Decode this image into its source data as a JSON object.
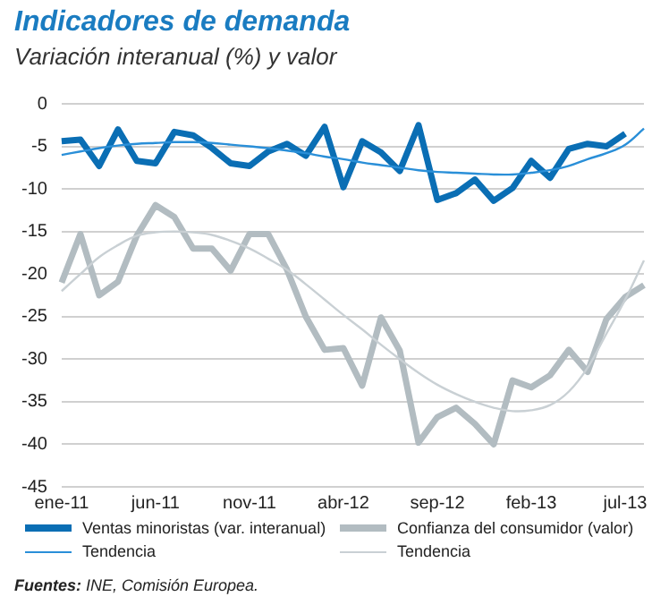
{
  "chart_data": {
    "type": "line",
    "title": "Indicadores de demanda",
    "subtitle": "Variación interanual (%) y valor",
    "categories": [
      "ene-11",
      null,
      null,
      null,
      null,
      "jun-11",
      null,
      null,
      null,
      null,
      "nov-11",
      null,
      null,
      null,
      null,
      "abr-12",
      null,
      null,
      null,
      null,
      "sep-12",
      null,
      null,
      null,
      null,
      "feb-13",
      null,
      null,
      null,
      null,
      "jul-13",
      null
    ],
    "series": [
      {
        "name": "Ventas minoristas (var. interanual)",
        "color": "#0a6eb4",
        "values": [
          -4.4,
          -4.2,
          -7.3,
          -3.0,
          -6.7,
          -7.0,
          -3.3,
          -3.7,
          -5.2,
          -7.0,
          -7.3,
          -5.6,
          -4.7,
          -6.1,
          -2.7,
          -9.8,
          -4.4,
          -5.7,
          -7.9,
          -2.5,
          -11.3,
          -10.5,
          -8.9,
          -11.4,
          -9.9,
          -6.7,
          -8.7,
          -5.3,
          -4.7,
          -5.0,
          -3.5,
          null
        ]
      },
      {
        "name": "Tendencia",
        "color": "#2a8fd8",
        "values": [
          -6.0,
          -5.6,
          -5.2,
          -4.9,
          -4.7,
          -4.6,
          -4.5,
          -4.5,
          -4.6,
          -4.8,
          -5.0,
          -5.2,
          -5.5,
          -5.8,
          -6.2,
          -6.5,
          -6.9,
          -7.2,
          -7.5,
          -7.8,
          -8.0,
          -8.1,
          -8.2,
          -8.3,
          -8.3,
          -8.1,
          -7.8,
          -7.3,
          -6.5,
          -5.8,
          -4.8,
          -2.9
        ]
      },
      {
        "name": "Confianza del consumidor (valor)",
        "color": "#b2bcc1",
        "values": [
          -21.0,
          -15.3,
          -22.5,
          -20.9,
          -15.5,
          -11.9,
          -13.3,
          -17.0,
          -17.0,
          -19.6,
          -15.3,
          -15.3,
          -19.5,
          -25.0,
          -28.9,
          -28.7,
          -33.1,
          -25.1,
          -29.0,
          -39.8,
          -36.8,
          -35.7,
          -37.6,
          -40.0,
          -32.5,
          -33.3,
          -31.9,
          -28.9,
          -31.5,
          -25.3,
          -22.7,
          -21.3
        ]
      },
      {
        "name": "Tendencia",
        "color": "#c9d0d4",
        "values": [
          -22.0,
          -20.0,
          -18.0,
          -16.6,
          -15.5,
          -15.1,
          -15.0,
          -15.1,
          -15.4,
          -16.1,
          -17.0,
          -18.2,
          -19.5,
          -21.2,
          -23.0,
          -24.8,
          -26.5,
          -28.3,
          -30.0,
          -31.6,
          -33.0,
          -34.1,
          -35.0,
          -35.7,
          -36.1,
          -36.0,
          -35.4,
          -33.8,
          -31.0,
          -27.0,
          -23.0,
          -18.4
        ]
      }
    ],
    "ylim": [
      -45,
      0
    ],
    "yticks": [
      -45,
      -40,
      -35,
      -30,
      -25,
      -20,
      -15,
      -10,
      -5,
      0
    ],
    "grid": "y",
    "legend": "bottom",
    "marker": "none",
    "line_style": "solid",
    "annotations": [
      "Fuentes: INE, Comisión Europea."
    ]
  }
}
